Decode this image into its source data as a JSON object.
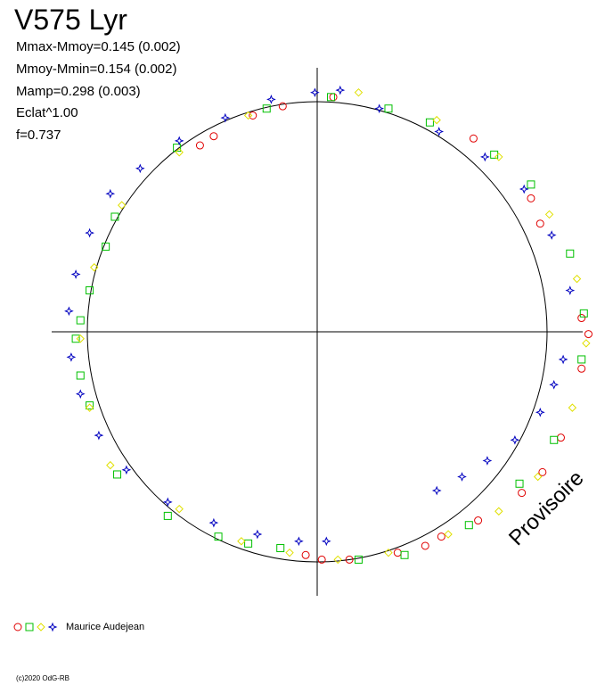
{
  "chart_data": {
    "type": "scatter",
    "title": "V575 Lyr",
    "stats": [
      "Mmax-Mmoy=0.145 (0.002)",
      "Mmoy-Mmin=0.154 (0.002)",
      "Mamp=0.298 (0.003)",
      "Eclat^1.00",
      "f=0.737"
    ],
    "reference_circle_radius": 1.0,
    "xlim": [
      -1.16,
      1.16
    ],
    "ylim": [
      -1.16,
      1.16
    ],
    "grid": false,
    "legend_position": "bottom-left",
    "legend": {
      "markers": [
        "circle",
        "square",
        "diamond",
        "star"
      ],
      "label": "Maurice Audejean"
    },
    "series": [
      {
        "marker": "circle",
        "color": "#e00000",
        "values": [
          [
            0.07,
            1.02
          ],
          [
            -0.15,
            0.98
          ],
          [
            -0.28,
            0.94
          ],
          [
            -0.45,
            0.85
          ],
          [
            -0.51,
            0.81
          ],
          [
            0.68,
            0.84
          ],
          [
            0.93,
            0.58
          ],
          [
            0.97,
            0.47
          ],
          [
            1.15,
            0.06
          ],
          [
            1.18,
            -0.01
          ],
          [
            1.15,
            -0.16
          ],
          [
            1.06,
            -0.46
          ],
          [
            0.98,
            -0.61
          ],
          [
            0.89,
            -0.7
          ],
          [
            0.7,
            -0.82
          ],
          [
            0.54,
            -0.89
          ],
          [
            0.47,
            -0.93
          ],
          [
            0.35,
            -0.96
          ],
          [
            0.14,
            -0.99
          ],
          [
            0.02,
            -0.99
          ],
          [
            -0.05,
            -0.97
          ]
        ]
      },
      {
        "marker": "square",
        "color": "#00c000",
        "values": [
          [
            -0.88,
            0.5
          ],
          [
            -0.92,
            0.37
          ],
          [
            -0.99,
            0.18
          ],
          [
            -1.03,
            0.05
          ],
          [
            -1.05,
            -0.03
          ],
          [
            -1.03,
            -0.19
          ],
          [
            -0.99,
            -0.32
          ],
          [
            -0.87,
            -0.62
          ],
          [
            -0.65,
            -0.8
          ],
          [
            -0.43,
            -0.89
          ],
          [
            -0.3,
            -0.92
          ],
          [
            -0.16,
            -0.94
          ],
          [
            0.18,
            -0.99
          ],
          [
            0.38,
            -0.97
          ],
          [
            0.66,
            -0.84
          ],
          [
            0.88,
            -0.66
          ],
          [
            1.03,
            -0.47
          ],
          [
            1.15,
            -0.12
          ],
          [
            1.16,
            0.08
          ],
          [
            1.1,
            0.34
          ],
          [
            0.93,
            0.64
          ],
          [
            0.77,
            0.77
          ],
          [
            0.49,
            0.91
          ],
          [
            0.31,
            0.97
          ],
          [
            0.06,
            1.02
          ],
          [
            -0.22,
            0.97
          ],
          [
            -0.61,
            0.8
          ]
        ]
      },
      {
        "marker": "diamond",
        "color": "#e0e000",
        "values": [
          [
            0.18,
            1.04
          ],
          [
            0.52,
            0.92
          ],
          [
            0.79,
            0.76
          ],
          [
            1.01,
            0.51
          ],
          [
            1.13,
            0.23
          ],
          [
            1.17,
            -0.05
          ],
          [
            1.11,
            -0.33
          ],
          [
            0.96,
            -0.63
          ],
          [
            0.79,
            -0.78
          ],
          [
            0.57,
            -0.88
          ],
          [
            0.31,
            -0.96
          ],
          [
            0.09,
            -0.99
          ],
          [
            -0.12,
            -0.96
          ],
          [
            -0.33,
            -0.91
          ],
          [
            -0.6,
            -0.77
          ],
          [
            -0.9,
            -0.58
          ],
          [
            -0.99,
            -0.33
          ],
          [
            -1.03,
            -0.03
          ],
          [
            -0.97,
            0.28
          ],
          [
            -0.85,
            0.55
          ],
          [
            -0.6,
            0.78
          ],
          [
            -0.3,
            0.94
          ]
        ]
      },
      {
        "marker": "star",
        "color": "#0000c0",
        "values": [
          [
            -0.01,
            1.04
          ],
          [
            0.1,
            1.05
          ],
          [
            -0.2,
            1.01
          ],
          [
            -0.4,
            0.93
          ],
          [
            -0.6,
            0.83
          ],
          [
            -0.77,
            0.71
          ],
          [
            -0.9,
            0.6
          ],
          [
            -0.99,
            0.43
          ],
          [
            -1.05,
            0.25
          ],
          [
            -1.08,
            0.09
          ],
          [
            -1.07,
            -0.11
          ],
          [
            -1.03,
            -0.27
          ],
          [
            -0.95,
            -0.45
          ],
          [
            -0.83,
            -0.6
          ],
          [
            -0.65,
            -0.74
          ],
          [
            -0.45,
            -0.83
          ],
          [
            -0.26,
            -0.88
          ],
          [
            -0.08,
            -0.91
          ],
          [
            0.04,
            -0.91
          ],
          [
            1.1,
            0.18
          ],
          [
            1.02,
            0.42
          ],
          [
            0.9,
            0.62
          ],
          [
            0.73,
            0.76
          ],
          [
            0.53,
            0.87
          ],
          [
            0.27,
            0.97
          ],
          [
            1.07,
            -0.12
          ],
          [
            1.03,
            -0.23
          ],
          [
            0.97,
            -0.35
          ],
          [
            0.86,
            -0.47
          ],
          [
            0.74,
            -0.56
          ],
          [
            0.63,
            -0.63
          ],
          [
            0.52,
            -0.69
          ]
        ]
      }
    ]
  },
  "watermark": "Provisoire",
  "copyright": "(c)2020 OdG-RB"
}
